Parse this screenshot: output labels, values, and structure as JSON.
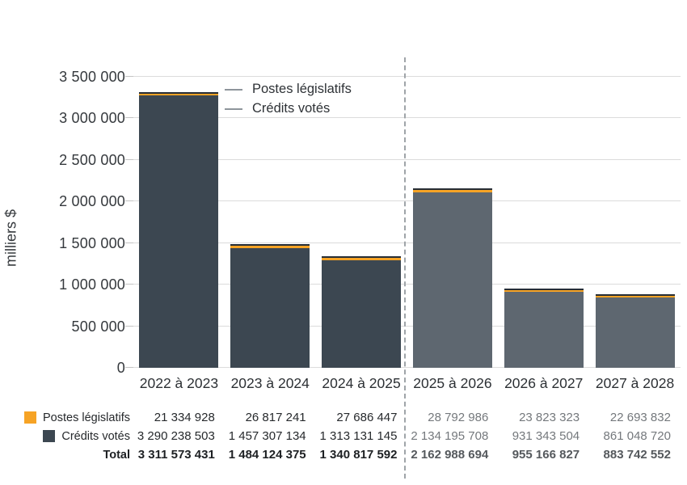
{
  "chart": {
    "ylabel": "milliers $",
    "y_ticks": [
      {
        "value": 0,
        "label": "0"
      },
      {
        "value": 500000,
        "label": "500 000"
      },
      {
        "value": 1000000,
        "label": "1 000 000"
      },
      {
        "value": 1500000,
        "label": "1 500 000"
      },
      {
        "value": 2000000,
        "label": "2 000 000"
      },
      {
        "value": 2500000,
        "label": "2 500 000"
      },
      {
        "value": 3000000,
        "label": "3 000 000"
      },
      {
        "value": 3500000,
        "label": "3 500 000"
      }
    ],
    "legend": [
      {
        "label": "Postes législatifs",
        "marker": "dash-icon"
      },
      {
        "label": "Crédits votés",
        "marker": "dash-icon"
      }
    ],
    "colors": {
      "legislative_orange": "#F6A325",
      "voted_actual_slate": "#3C4751",
      "voted_forecast_slate": "#5E6770",
      "bar_cap_dark": "#262D35",
      "gridline": "#DBDBDB",
      "divider_dash": "#9FA4A8",
      "legend_dash": "#8E959B",
      "axis_text": "#35393D",
      "table_right_gray": "#74787C"
    }
  },
  "chart_data": {
    "type": "bar",
    "stacked": true,
    "title": "",
    "ylabel": "milliers $",
    "xlabel": "",
    "ylim": [
      0,
      3500000
    ],
    "y_axis_divisor": 1000,
    "grid": true,
    "legend_position": "inside-top-left",
    "forecast_start_index": 3,
    "categories": [
      "2022 à 2023",
      "2023 à 2024",
      "2024 à 2025",
      "2025 à 2026",
      "2026 à 2027",
      "2027 à 2028"
    ],
    "series": [
      {
        "name": "Postes législatifs",
        "values": [
          21334928,
          26817241,
          27686447,
          28792986,
          23823323,
          22693832
        ]
      },
      {
        "name": "Crédits votés",
        "values": [
          3290238503,
          1457307134,
          1313131145,
          2134195708,
          931343504,
          861048720
        ]
      }
    ],
    "totals": [
      3311573431,
      1484124375,
      1340817592,
      2162988694,
      955166827,
      883742552
    ]
  },
  "table": {
    "rows": [
      {
        "label": "Postes législatifs",
        "swatch": "orange-square-icon",
        "bold": false,
        "cells": [
          "21 334 928",
          "26 817 241",
          "27 686 447",
          "28 792 986",
          "23 823 323",
          "22 693 832"
        ]
      },
      {
        "label": "Crédits votés",
        "swatch": "slate-square-icon",
        "bold": false,
        "cells": [
          "3 290 238 503",
          "1 457 307 134",
          "1 313 131 145",
          "2 134 195 708",
          "931 343 504",
          "861 048 720"
        ]
      },
      {
        "label": "Total",
        "swatch": null,
        "bold": true,
        "cells": [
          "3 311 573 431",
          "1 484 124 375",
          "1 340 817 592",
          "2 162 988 694",
          "955 166 827",
          "883 742 552"
        ]
      }
    ]
  }
}
